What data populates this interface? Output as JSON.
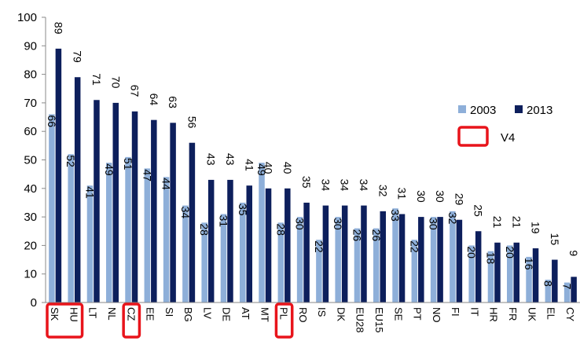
{
  "chart_data": {
    "type": "bar",
    "categories": [
      "SK",
      "HU",
      "LT",
      "NL",
      "CZ",
      "EE",
      "SI",
      "BG",
      "LV",
      "DE",
      "AT",
      "MT",
      "PL",
      "RO",
      "IS",
      "DK",
      "EU28",
      "EU15",
      "SE",
      "PT",
      "NO",
      "FI",
      "IT",
      "HR",
      "FR",
      "UK",
      "EL",
      "CY"
    ],
    "series": [
      {
        "name": "2003",
        "color": "#8EAFD9",
        "values": [
          66,
          52,
          41,
          49,
          51,
          47,
          44,
          34,
          28,
          31,
          35,
          49,
          28,
          30,
          22,
          30,
          26,
          26,
          33,
          22,
          30,
          32,
          20,
          18,
          20,
          16,
          8,
          7
        ]
      },
      {
        "name": "2013",
        "color": "#0D1F5C",
        "values": [
          89,
          79,
          71,
          70,
          67,
          64,
          63,
          56,
          43,
          43,
          41,
          40,
          40,
          35,
          34,
          34,
          34,
          32,
          31,
          30,
          30,
          29,
          25,
          21,
          21,
          19,
          15,
          9
        ]
      }
    ],
    "highlighted_categories": [
      "SK",
      "HU",
      "CZ",
      "PL"
    ],
    "highlight_color": "#E8141B",
    "y_ticks": [
      0,
      10,
      20,
      30,
      40,
      50,
      60,
      70,
      80,
      90,
      100
    ],
    "ylim": [
      0,
      100
    ],
    "grid": false,
    "legend": {
      "placement": "right",
      "entries": [
        "2003",
        "2013"
      ],
      "highlight_label": "V4"
    }
  }
}
